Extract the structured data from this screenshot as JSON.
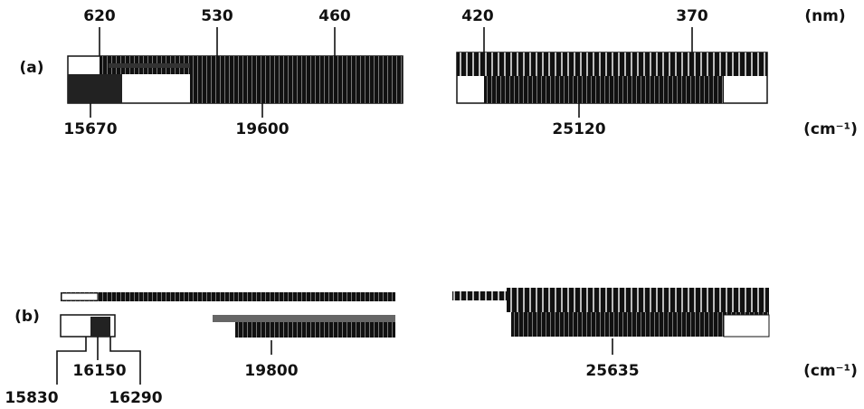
{
  "panels": [
    {
      "label": "(a)",
      "wavelength_unit": "(nm)",
      "wavelength_ticks": [
        "620",
        "530",
        "460",
        "420",
        "370"
      ],
      "wavenumber_unit": "(cm⁻¹)",
      "wavenumber_ticks": [
        "15670",
        "19600",
        "25120"
      ]
    },
    {
      "label": "(b)",
      "wavenumber_unit": "(cm⁻¹)",
      "wavenumber_ticks": [
        "15830",
        "16150",
        "16290",
        "19800",
        "25635"
      ]
    }
  ]
}
